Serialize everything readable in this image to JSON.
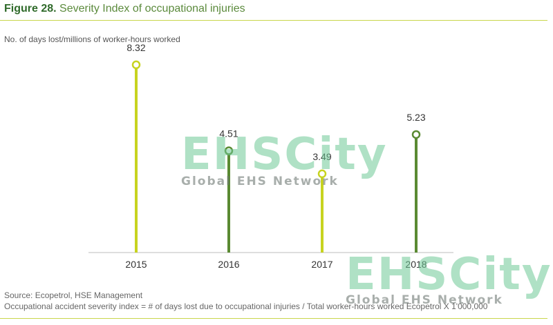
{
  "figure": {
    "number": "Figure 28.",
    "title": "Severity Index of occupational injuries",
    "unit_label": "No. of days lost/millions of worker-hours worked",
    "source": "Source: Ecopetrol, HSE Management",
    "note": "Occupational accident severity index = # of days lost due to occupational injuries / Total worker-hours worked Ecopetrol X 1'000,000"
  },
  "watermark": {
    "brand": "EHSCity",
    "tagline": "Global EHS Network"
  },
  "chart_data": {
    "type": "lollipop",
    "categories": [
      "2015",
      "2016",
      "2017",
      "2018"
    ],
    "values": [
      8.32,
      4.51,
      3.49,
      5.23
    ],
    "labels": [
      "8.32",
      "4.51",
      "3.49",
      "5.23"
    ],
    "ylabel": "No. of days lost/millions of worker-hours worked",
    "ylim": [
      0,
      10
    ],
    "colors": [
      "#c7d31f",
      "#5a8a32",
      "#c7d31f",
      "#5a8a32"
    ],
    "grid": false,
    "legend": "none"
  }
}
